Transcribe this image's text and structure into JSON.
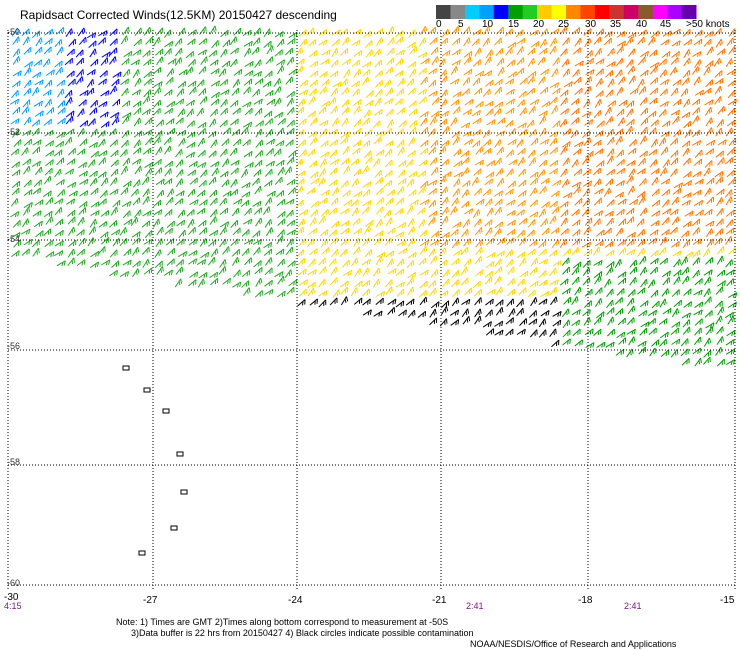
{
  "title": "Rapidsact Corrected Winds(12.5KM) 20150427 descending",
  "legend": {
    "labels": [
      "0",
      "5",
      "10",
      "15",
      "20",
      "25",
      "30",
      "35",
      "40",
      "45",
      ">50 knots"
    ],
    "colors": [
      "#444444",
      "#888888",
      "#00ccff",
      "#00a0ff",
      "#0000ff",
      "#00a000",
      "#22cc22",
      "#ffcc00",
      "#ffff00",
      "#ff8800",
      "#ff4400",
      "#ff0000",
      "#cc3333",
      "#cc0066",
      "#8b5a2b",
      "#ff00ff",
      "#aa00ff",
      "#6600aa"
    ]
  },
  "axes": {
    "lat_labels": [
      "-50",
      "-52",
      "-54",
      "-56",
      "-58",
      "-60"
    ],
    "lon_labels": [
      "-27",
      "-24",
      "-21",
      "-18",
      "-15"
    ],
    "corner_label": "-30",
    "times": [
      "4:15",
      "2:41",
      "2:41"
    ]
  },
  "note": "Note: 1) Times are GMT 2)Times along bottom correspond to measurement at -50S\n      3)Data buffer is 22 hrs from 20150427 4) Black circles indicate possible contamination",
  "credit": "NOAA/NESDIS/Office of Research and Applications",
  "colors": {
    "grid": "#000000",
    "contamination": "#000000"
  }
}
